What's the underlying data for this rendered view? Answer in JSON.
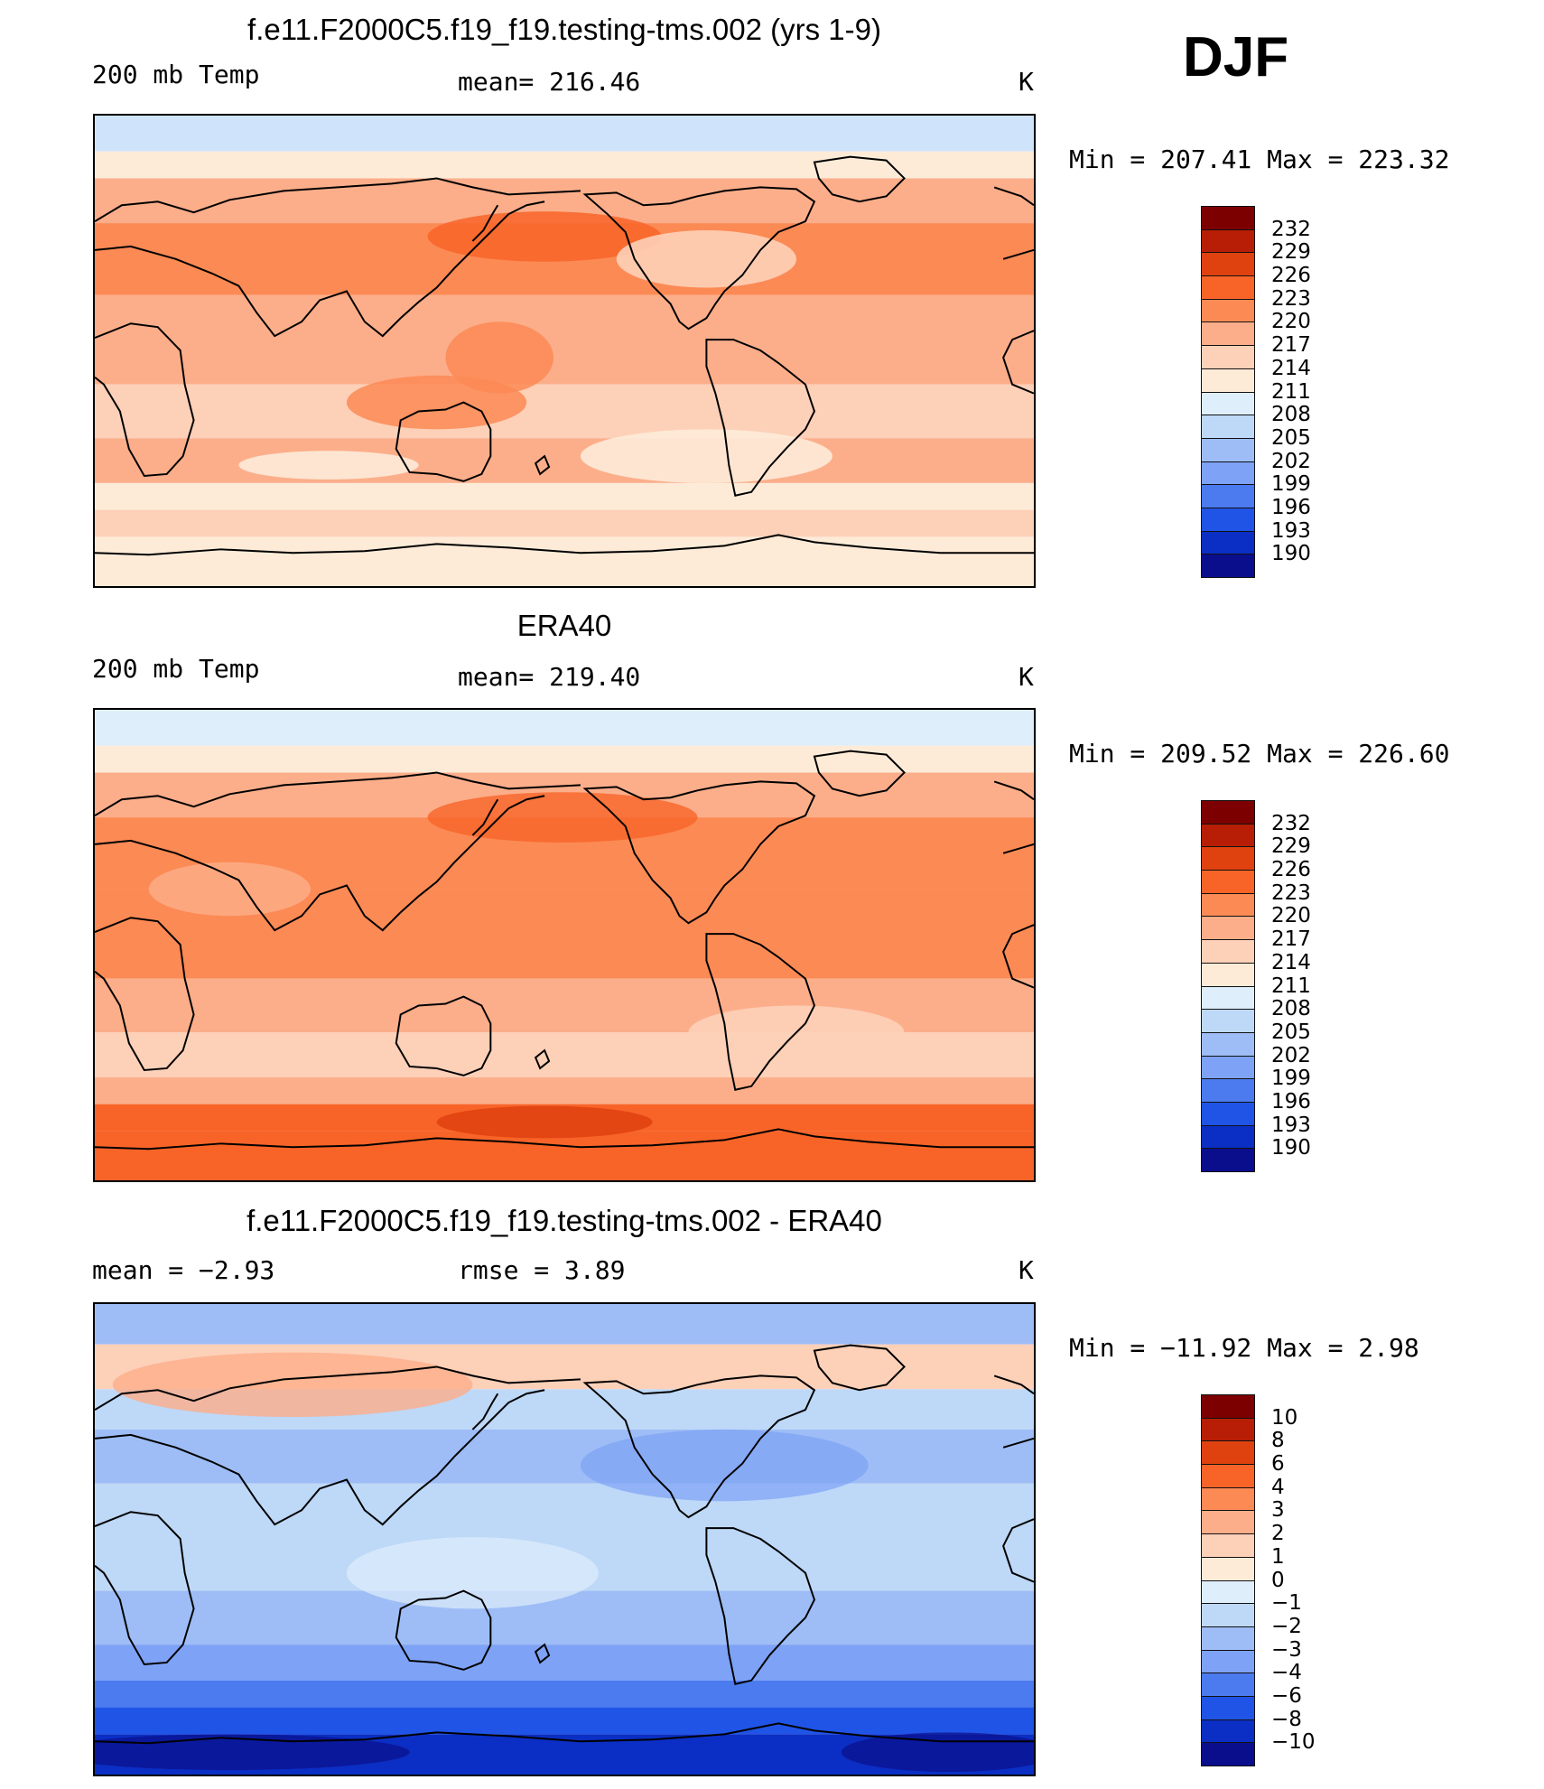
{
  "season": "DJF",
  "panels": [
    {
      "title": "f.e11.F2000C5.f19_f19.testing-tms.002 (yrs 1-9)",
      "left_label": "200 mb Temp",
      "center_label": "mean=  216.46",
      "units": "K",
      "minmax": "Min  =  207.41  Max  =  223.32",
      "palette": "temp",
      "colorbar_labels": [
        "232",
        "229",
        "226",
        "223",
        "220",
        "217",
        "214",
        "211",
        "208",
        "205",
        "202",
        "199",
        "196",
        "193",
        "190"
      ]
    },
    {
      "title": "ERA40",
      "left_label": "200 mb Temp",
      "center_label": "mean=  219.40",
      "units": "K",
      "minmax": "Min  =  209.52  Max  =  226.60",
      "palette": "temp",
      "colorbar_labels": [
        "232",
        "229",
        "226",
        "223",
        "220",
        "217",
        "214",
        "211",
        "208",
        "205",
        "202",
        "199",
        "196",
        "193",
        "190"
      ]
    },
    {
      "title": "f.e11.F2000C5.f19_f19.testing-tms.002 - ERA40",
      "left_label": "mean  =    −2.93",
      "center_label": "rmse  =     3.89",
      "units": "K",
      "minmax": "Min  =  −11.92  Max  =     2.98",
      "palette": "diff",
      "colorbar_labels": [
        "10",
        "8",
        "6",
        "4",
        "3",
        "2",
        "1",
        "0",
        "−1",
        "−2",
        "−3",
        "−4",
        "−6",
        "−8",
        "−10"
      ]
    }
  ],
  "colors": {
    "palette_16": [
      "#7d0000",
      "#b71e05",
      "#e0420f",
      "#f86428",
      "#fc8a55",
      "#fcae8a",
      "#fdd0b8",
      "#fdebd8",
      "#deeefb",
      "#bed8f7",
      "#9ebdf6",
      "#7ea2f5",
      "#4c7bef",
      "#2054e6",
      "#0b2fc4",
      "#0a0e8c"
    ]
  }
}
